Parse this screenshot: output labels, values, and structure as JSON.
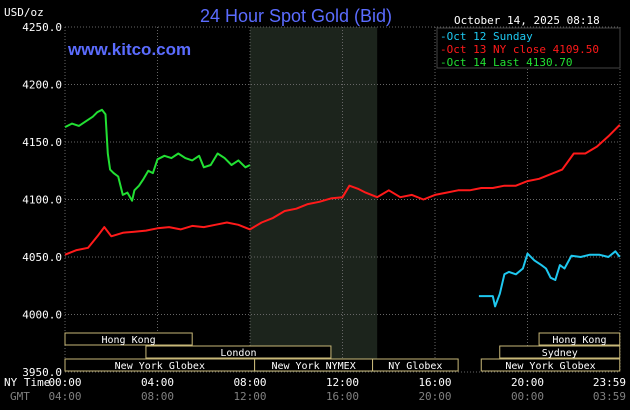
{
  "header": {
    "title": "24 Hour Spot Gold (Bid)",
    "unit": "USD/oz",
    "brand": "www.kitco.com",
    "date": "October 14, 2025 08:18"
  },
  "colors": {
    "background": "#000000",
    "grid": "#666666",
    "oct12": "#1ec8f0",
    "oct13": "#ff1a1a",
    "oct14": "#22e033",
    "session_shade": "#1c241c",
    "market_box": "#c8b878"
  },
  "chart_data": {
    "type": "line",
    "title": "24 Hour Spot Gold (Bid)",
    "ylabel": "USD/oz",
    "ylim": [
      3950,
      4250
    ],
    "yticks": [
      "4250.0",
      "4200.0",
      "4150.0",
      "4100.0",
      "4050.0",
      "4000.0",
      "3950.0"
    ],
    "x_axis_rows": [
      {
        "name": "NY Time",
        "ticks": [
          "00:00",
          "04:00",
          "08:00",
          "12:00",
          "16:00",
          "20:00",
          "23:59"
        ]
      },
      {
        "name": "GMT",
        "ticks": [
          "04:00",
          "08:00",
          "12:00",
          "16:00",
          "20:00",
          "00:00",
          "03:59"
        ]
      }
    ],
    "xlim": [
      0,
      24
    ],
    "shaded_session": [
      8,
      13.5
    ],
    "series": [
      {
        "name": "Oct 12 Sunday",
        "color": "#1ec8f0",
        "x": [
          17.9,
          18.5,
          18.6,
          18.8,
          19.0,
          19.2,
          19.5,
          19.8,
          20.0,
          20.3,
          20.6,
          20.8,
          21.0,
          21.2,
          21.4,
          21.6,
          21.9,
          22.3,
          22.7,
          23.1,
          23.5,
          23.8,
          23.99
        ],
        "y": [
          4016,
          4016,
          4007,
          4018,
          4035,
          4037,
          4035,
          4040,
          4053,
          4047,
          4043,
          4040,
          4032,
          4030,
          4043,
          4040,
          4051,
          4050,
          4052,
          4052,
          4050,
          4055,
          4050
        ]
      },
      {
        "name": "Oct 13 NY close 4109.50",
        "color": "#ff1a1a",
        "x": [
          0,
          0.5,
          1.0,
          1.4,
          1.7,
          2.0,
          2.5,
          3.0,
          3.5,
          4.0,
          4.5,
          5.0,
          5.5,
          6.0,
          6.5,
          7.0,
          7.5,
          8.0,
          8.5,
          9.0,
          9.5,
          10.0,
          10.5,
          11.0,
          11.5,
          12.0,
          12.3,
          12.7,
          13.0,
          13.5,
          14.0,
          14.5,
          15.0,
          15.5,
          16.0,
          16.5,
          17.0,
          17.5,
          18.0,
          18.5,
          19.0,
          19.5,
          20.0,
          20.5,
          21.0,
          21.5,
          22.0,
          22.5,
          23.0,
          23.5,
          23.99
        ],
        "y": [
          4052,
          4056,
          4058,
          4068,
          4076,
          4068,
          4071,
          4072,
          4073,
          4075,
          4076,
          4074,
          4077,
          4076,
          4078,
          4080,
          4078,
          4074,
          4080,
          4084,
          4090,
          4092,
          4096,
          4098,
          4101,
          4102,
          4112,
          4109,
          4106,
          4102,
          4108,
          4102,
          4104,
          4100,
          4104,
          4106,
          4108,
          4108,
          4110,
          4110,
          4112,
          4112,
          4116,
          4118,
          4122,
          4126,
          4140,
          4140,
          4146,
          4155,
          4165
        ]
      },
      {
        "name": "Oct 14 Last 4130.70",
        "color": "#22e033",
        "x": [
          0,
          0.3,
          0.6,
          0.9,
          1.2,
          1.4,
          1.6,
          1.75,
          1.85,
          1.95,
          2.1,
          2.3,
          2.5,
          2.7,
          2.9,
          3.0,
          3.2,
          3.4,
          3.6,
          3.8,
          4.0,
          4.3,
          4.6,
          4.9,
          5.2,
          5.5,
          5.8,
          6.0,
          6.3,
          6.6,
          6.9,
          7.2,
          7.5,
          7.8,
          8.0
        ],
        "y": [
          4163,
          4166,
          4164,
          4168,
          4172,
          4176,
          4178,
          4174,
          4140,
          4126,
          4123,
          4120,
          4104,
          4106,
          4099,
          4108,
          4112,
          4118,
          4125,
          4123,
          4135,
          4138,
          4136,
          4140,
          4136,
          4134,
          4138,
          4128,
          4130,
          4140,
          4136,
          4130,
          4134,
          4128,
          4130
        ]
      }
    ],
    "legend": [
      "Oct 12 Sunday",
      "Oct 13 NY close 4109.50",
      "Oct 14 Last 4130.70"
    ],
    "legend_position": "top-right",
    "grid": true
  },
  "markets": [
    {
      "name": "Hong Kong",
      "start": 0,
      "end": 5.5,
      "row": 0
    },
    {
      "name": "London",
      "start": 3.5,
      "end": 11.5,
      "row": 1
    },
    {
      "name": "New York Globex",
      "start": 0,
      "end": 8.2,
      "row": 2
    },
    {
      "name": "New York NYMEX",
      "start": 8.2,
      "end": 13.3,
      "row": 2
    },
    {
      "name": "NY Globex",
      "start": 13.3,
      "end": 17.0,
      "row": 2
    },
    {
      "name": "Hong Kong",
      "start": 20.5,
      "end": 23.99,
      "row": 0
    },
    {
      "name": "Sydney",
      "start": 18.8,
      "end": 23.99,
      "row": 1
    },
    {
      "name": "New York Globex",
      "start": 18.0,
      "end": 23.99,
      "row": 2
    }
  ]
}
